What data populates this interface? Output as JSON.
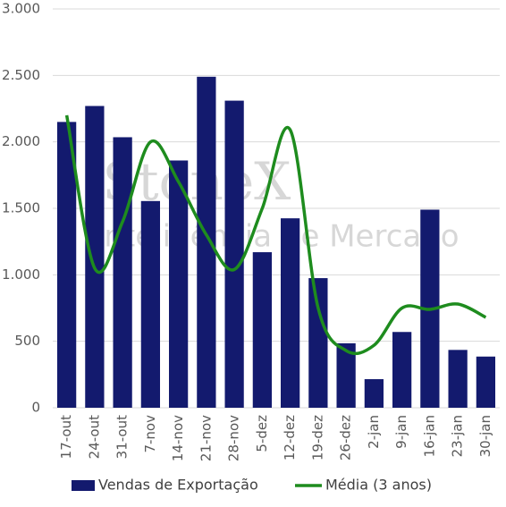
{
  "chart_data": {
    "type": "bar",
    "watermark": [
      "StoneX",
      "Inteligência de Mercado"
    ],
    "categories": [
      "17-out",
      "24-out",
      "31-out",
      "7-nov",
      "14-nov",
      "21-nov",
      "28-nov",
      "5-dez",
      "12-dez",
      "19-dez",
      "26-dez",
      "2-jan",
      "9-jan",
      "16-jan",
      "23-jan",
      "30-jan"
    ],
    "series": [
      {
        "name": "Vendas de Exportação",
        "type": "bar",
        "color": "#131a6e",
        "values": [
          2150,
          2270,
          2035,
          1555,
          1860,
          2490,
          2310,
          1170,
          1425,
          975,
          485,
          215,
          570,
          1490,
          435,
          385
        ]
      },
      {
        "name": "Média (3 anos)",
        "type": "line",
        "color": "#1e8c1e",
        "values": [
          2200,
          1050,
          1400,
          2000,
          1700,
          1300,
          1040,
          1500,
          2090,
          750,
          430,
          470,
          750,
          740,
          780,
          680
        ]
      }
    ],
    "ylim": [
      0,
      3000
    ],
    "yticks": [
      0,
      500,
      {
        "value": 1000,
        "label": "1.000"
      },
      {
        "value": 1500,
        "label": "1.500"
      },
      {
        "value": 2000,
        "label": "2.000"
      },
      {
        "value": 2500,
        "label": "2.500"
      },
      {
        "value": 3000,
        "label": "3.000"
      }
    ],
    "grid": true,
    "legend": "bottom"
  }
}
